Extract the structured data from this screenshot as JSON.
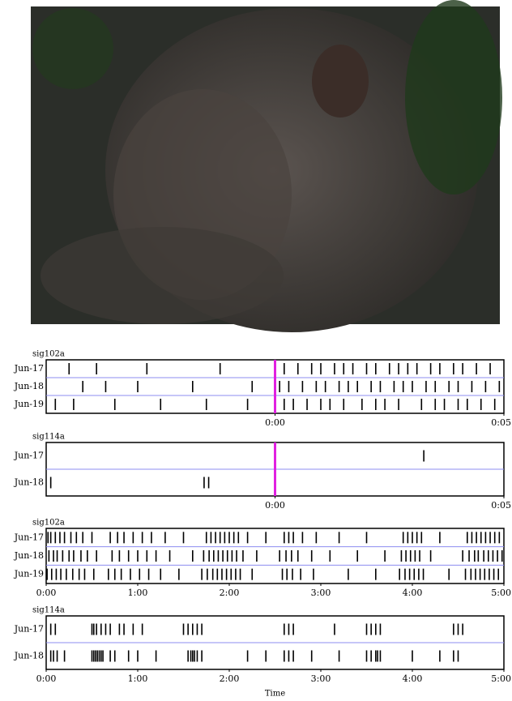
{
  "chart_data": [
    {
      "type": "raster",
      "title": "sig102a",
      "xlim": [
        -5,
        5
      ],
      "xticks": [
        {
          "value": 0,
          "label": "0:00"
        },
        {
          "value": 5,
          "label": "0:05"
        }
      ],
      "marker": 0,
      "rows": [
        {
          "label": "Jun-17",
          "spikes": [
            -4.5,
            -3.9,
            -2.8,
            -1.2,
            0.2,
            0.5,
            0.8,
            1.0,
            1.3,
            1.5,
            1.7,
            2.0,
            2.2,
            2.5,
            2.7,
            2.9,
            3.1,
            3.4,
            3.6,
            3.9,
            4.1,
            4.4,
            4.7
          ]
        },
        {
          "label": "Jun-18",
          "spikes": [
            -4.2,
            -3.7,
            -3.0,
            -1.8,
            -0.5,
            0.1,
            0.3,
            0.6,
            0.9,
            1.1,
            1.4,
            1.6,
            1.8,
            2.1,
            2.3,
            2.6,
            2.8,
            3.0,
            3.3,
            3.5,
            3.8,
            4.0,
            4.3,
            4.6,
            4.9
          ]
        },
        {
          "label": "Jun-19",
          "spikes": [
            -4.8,
            -4.4,
            -3.5,
            -2.5,
            -1.5,
            -0.6,
            0.2,
            0.4,
            0.7,
            1.0,
            1.2,
            1.5,
            1.9,
            2.2,
            2.4,
            2.7,
            3.2,
            3.5,
            3.7,
            4.0,
            4.2,
            4.5,
            4.8
          ]
        }
      ]
    },
    {
      "type": "raster",
      "title": "sig114a",
      "xlim": [
        -5,
        5
      ],
      "xticks": [
        {
          "value": 0,
          "label": "0:00"
        },
        {
          "value": 5,
          "label": "0:05"
        }
      ],
      "marker": 0,
      "rows": [
        {
          "label": "Jun-17",
          "spikes": [
            3.25
          ]
        },
        {
          "label": "Jun-18",
          "spikes": [
            -4.9,
            -1.55,
            -1.45
          ]
        }
      ]
    },
    {
      "type": "raster",
      "title": "sig102a",
      "xlim": [
        0,
        5
      ],
      "xticks": [
        {
          "value": 0,
          "label": "0:00"
        },
        {
          "value": 1,
          "label": "1:00"
        },
        {
          "value": 2,
          "label": "2:00"
        },
        {
          "value": 3,
          "label": "3:00"
        },
        {
          "value": 4,
          "label": "4:00"
        },
        {
          "value": 5,
          "label": "5:00"
        }
      ],
      "rows": [
        {
          "label": "Jun-17",
          "spikes": [
            0.02,
            0.05,
            0.1,
            0.15,
            0.2,
            0.27,
            0.33,
            0.4,
            0.5,
            0.7,
            0.78,
            0.85,
            0.95,
            1.05,
            1.15,
            1.3,
            1.5,
            1.75,
            1.8,
            1.85,
            1.9,
            1.95,
            2.0,
            2.05,
            2.1,
            2.2,
            2.4,
            2.6,
            2.65,
            2.7,
            2.8,
            2.95,
            3.2,
            3.5,
            3.9,
            3.95,
            4.0,
            4.05,
            4.1,
            4.3,
            4.6,
            4.65,
            4.7,
            4.75,
            4.8,
            4.85,
            4.9,
            4.95
          ]
        },
        {
          "label": "Jun-18",
          "spikes": [
            0.03,
            0.08,
            0.12,
            0.18,
            0.25,
            0.3,
            0.38,
            0.45,
            0.55,
            0.72,
            0.8,
            0.9,
            1.0,
            1.1,
            1.2,
            1.35,
            1.6,
            1.72,
            1.78,
            1.83,
            1.88,
            1.93,
            1.98,
            2.03,
            2.08,
            2.15,
            2.3,
            2.55,
            2.62,
            2.68,
            2.75,
            2.9,
            3.1,
            3.4,
            3.7,
            3.88,
            3.93,
            3.98,
            4.03,
            4.08,
            4.2,
            4.55,
            4.62,
            4.68,
            4.72,
            4.78,
            4.83,
            4.88,
            4.93,
            4.98
          ]
        },
        {
          "label": "Jun-19",
          "spikes": [
            0.01,
            0.06,
            0.11,
            0.16,
            0.22,
            0.29,
            0.36,
            0.42,
            0.52,
            0.68,
            0.75,
            0.82,
            0.92,
            1.02,
            1.12,
            1.25,
            1.45,
            1.7,
            1.76,
            1.82,
            1.87,
            1.92,
            1.97,
            2.02,
            2.07,
            2.12,
            2.25,
            2.58,
            2.63,
            2.69,
            2.78,
            2.92,
            3.3,
            3.6,
            3.86,
            3.92,
            3.97,
            4.02,
            4.07,
            4.12,
            4.4,
            4.58,
            4.64,
            4.69,
            4.74,
            4.79,
            4.84,
            4.89,
            4.94
          ]
        }
      ]
    },
    {
      "type": "raster",
      "title": "sig114a",
      "xlim": [
        0,
        5
      ],
      "xlabel": "Time",
      "xticks": [
        {
          "value": 0,
          "label": "0:00"
        },
        {
          "value": 1,
          "label": "1:00"
        },
        {
          "value": 2,
          "label": "2:00"
        },
        {
          "value": 3,
          "label": "3:00"
        },
        {
          "value": 4,
          "label": "4:00"
        },
        {
          "value": 5,
          "label": "5:00"
        }
      ],
      "rows": [
        {
          "label": "Jun-17",
          "spikes": [
            0.05,
            0.1,
            0.5,
            0.52,
            0.55,
            0.6,
            0.65,
            0.7,
            0.8,
            0.85,
            0.95,
            1.05,
            1.5,
            1.55,
            1.6,
            1.65,
            1.7,
            2.6,
            2.65,
            2.7,
            3.15,
            3.5,
            3.55,
            3.6,
            3.65,
            4.45,
            4.5,
            4.55
          ]
        },
        {
          "label": "Jun-18",
          "spikes": [
            0.05,
            0.08,
            0.12,
            0.2,
            0.5,
            0.52,
            0.54,
            0.56,
            0.58,
            0.6,
            0.62,
            0.7,
            0.75,
            0.9,
            1.0,
            1.2,
            1.55,
            1.58,
            1.6,
            1.62,
            1.65,
            1.7,
            2.2,
            2.4,
            2.6,
            2.65,
            2.7,
            2.9,
            3.2,
            3.5,
            3.55,
            3.6,
            3.62,
            3.65,
            4.0,
            4.3,
            4.45,
            4.5
          ]
        }
      ]
    }
  ]
}
